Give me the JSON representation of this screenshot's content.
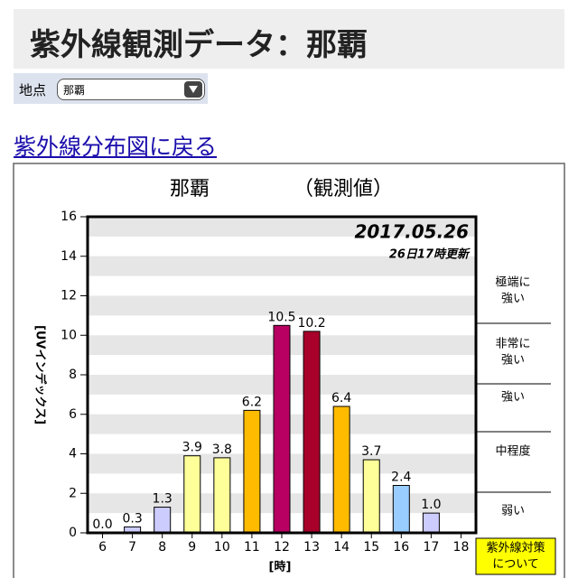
{
  "header": {
    "title": "紫外線観測データ：那覇"
  },
  "selector": {
    "label": "地点",
    "value": "那覇"
  },
  "link": "紫外線分布図に戻る",
  "button": [
    "紫外線対策",
    "について"
  ],
  "chart_data": {
    "type": "bar",
    "title": "那覇",
    "subtitle": "（観測値）",
    "date": "2017.05.26",
    "updated": "26日17時更新",
    "y_label": "[UVインデックス]",
    "x_label": "[時]",
    "categories": [
      "6",
      "7",
      "8",
      "9",
      "10",
      "11",
      "12",
      "13",
      "14",
      "15",
      "16",
      "17",
      "18"
    ],
    "values": [
      0.0,
      0.3,
      1.3,
      3.9,
      3.8,
      6.2,
      10.5,
      10.2,
      6.4,
      3.7,
      2.4,
      1.0,
      null
    ],
    "value_labels": [
      "0.0",
      "0.3",
      "1.3",
      "3.9",
      "3.8",
      "6.2",
      "10.5",
      "10.2",
      "6.4",
      "3.7",
      "2.4",
      "1.0",
      null
    ],
    "colors": [
      "#ccccff",
      "#ccccff",
      "#ccccff",
      "#ffff99",
      "#ffff99",
      "#ffbb00",
      "#b80062",
      "#a8002a",
      "#ffbb00",
      "#ffff99",
      "#99ccff",
      "#ccccff",
      null
    ],
    "ylim": [
      0,
      16
    ],
    "yticks": [
      0,
      2,
      4,
      6,
      8,
      10,
      12,
      14,
      16
    ],
    "levels": [
      [
        "極端に",
        "強い"
      ],
      [
        "非常に",
        "強い"
      ],
      [
        "強い"
      ],
      [
        "中程度"
      ],
      [
        "弱い"
      ]
    ]
  }
}
